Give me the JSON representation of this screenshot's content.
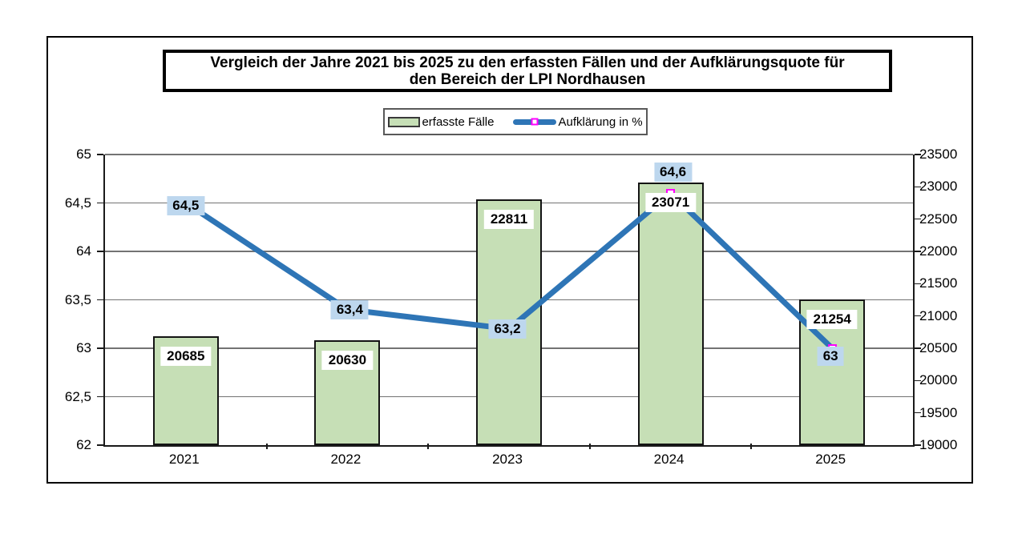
{
  "chart": {
    "title_line1": "Vergleich der Jahre 2021 bis 2025 zu den erfassten Fällen und der Aufklärungsquote für",
    "title_line2": "den Bereich der LPI Nordhausen"
  },
  "chart_data": {
    "type": "combo-bar-line",
    "categories": [
      "2021",
      "2022",
      "2023",
      "2024",
      "2025"
    ],
    "series": [
      {
        "name": "erfasste Fälle",
        "type": "bar",
        "axis": "right",
        "values": [
          20685,
          20630,
          22811,
          23071,
          21254
        ],
        "labels": [
          "20685",
          "20630",
          "22811",
          "23071",
          "21254"
        ]
      },
      {
        "name": "Aufklärung in %",
        "type": "line",
        "axis": "left",
        "values": [
          64.5,
          63.4,
          63.2,
          64.6,
          63
        ],
        "labels": [
          "64,5",
          "63,4",
          "63,2",
          "64,6",
          "63"
        ]
      }
    ],
    "left_axis": {
      "min": 62,
      "max": 65,
      "step": 0.5,
      "ticks": [
        "65",
        "64,5",
        "64",
        "63,5",
        "63",
        "62,5",
        "62"
      ]
    },
    "right_axis": {
      "min": 19000,
      "max": 23500,
      "step": 500,
      "ticks": [
        "23500",
        "23000",
        "22500",
        "22000",
        "21500",
        "21000",
        "20500",
        "20000",
        "19500",
        "19000"
      ]
    },
    "grid": true,
    "legend_position": "top-center",
    "colors": {
      "bar_fill": "#c6dfb6",
      "bar_border": "#141414",
      "line": "#2e75b6",
      "marker": "#ff00ff",
      "line_label_bg": "#bdd7ee",
      "bar_label_bg": "#ffffff",
      "gridline": "#737373",
      "axis": "#1a1a1a"
    }
  }
}
